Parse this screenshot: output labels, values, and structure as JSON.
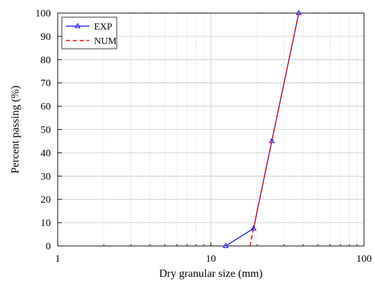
{
  "chart_data": {
    "type": "line",
    "title": "",
    "xlabel": "Dry granular size (mm)",
    "ylabel": "Percent passing (%)",
    "x_scale": "log",
    "xlim": [
      1,
      100
    ],
    "ylim": [
      0,
      100
    ],
    "x_ticks": [
      1,
      10,
      100
    ],
    "x_tick_labels": [
      "1",
      "10",
      "100"
    ],
    "y_ticks": [
      0,
      10,
      20,
      30,
      40,
      50,
      60,
      70,
      80,
      90,
      100
    ],
    "y_tick_labels": [
      "0",
      "10",
      "20",
      "30",
      "40",
      "50",
      "60",
      "70",
      "80",
      "90",
      "100"
    ],
    "grid": true,
    "legend_position": "top-left",
    "series": [
      {
        "name": "EXP",
        "color": "#0000ff",
        "line_style": "solid",
        "marker": "triangle-up",
        "x": [
          12.5,
          19,
          25,
          37.5
        ],
        "y": [
          0,
          7.5,
          45,
          100
        ]
      },
      {
        "name": "NUM",
        "color": "#ff0000",
        "line_style": "dashed",
        "marker": "none",
        "x": [
          18,
          19,
          25,
          37.5
        ],
        "y": [
          0,
          7.5,
          45,
          100
        ]
      }
    ]
  }
}
